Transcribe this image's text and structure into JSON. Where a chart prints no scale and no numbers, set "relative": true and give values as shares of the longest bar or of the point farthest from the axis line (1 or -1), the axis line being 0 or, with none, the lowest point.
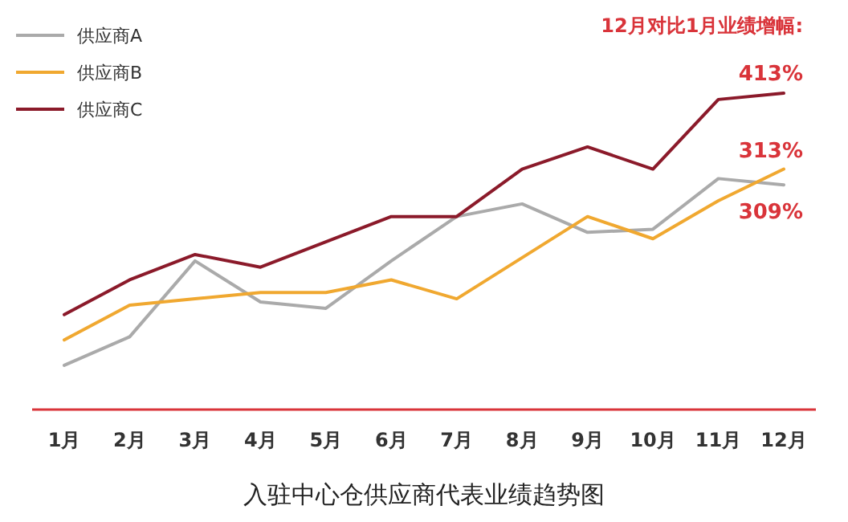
{
  "chart_data": {
    "type": "line",
    "title": "入驻中心仓供应商代表业绩趋势图",
    "relative": true,
    "legend": "top left",
    "marker": "none",
    "grid": false,
    "categories": [
      "1月",
      "2月",
      "3月",
      "4月",
      "5月",
      "6月",
      "7月",
      "8月",
      "9月",
      "10月",
      "11月",
      "12月"
    ],
    "series": [
      {
        "name": "供应商A",
        "color": "#aaaaaa",
        "values": [
          0.14,
          0.23,
          0.47,
          0.34,
          0.32,
          0.47,
          0.61,
          0.65,
          0.56,
          0.57,
          0.73,
          0.71
        ]
      },
      {
        "name": "供应商B",
        "color": "#f0a830",
        "values": [
          0.22,
          0.33,
          0.35,
          0.37,
          0.37,
          0.41,
          0.35,
          0.48,
          0.61,
          0.54,
          0.66,
          0.76
        ]
      },
      {
        "name": "供应商C",
        "color": "#8b1a2a",
        "values": [
          0.3,
          0.41,
          0.49,
          0.45,
          0.53,
          0.61,
          0.61,
          0.76,
          0.83,
          0.76,
          0.98,
          1
        ]
      }
    ],
    "annotations": [
      "12月对比1月业绩增幅:",
      "413%",
      "313%",
      "309%"
    ]
  }
}
